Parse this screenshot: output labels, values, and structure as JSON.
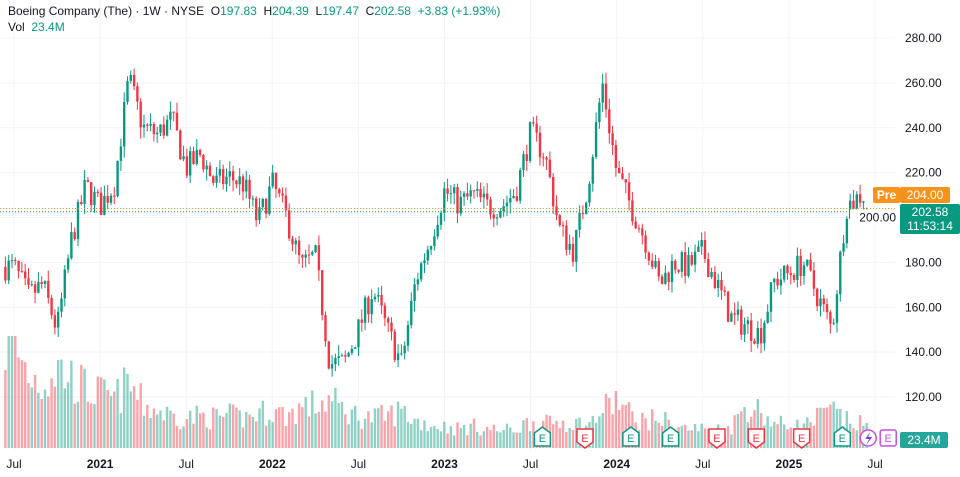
{
  "header": {
    "symbol": "Boeing Company (The) · 1W · NYSE",
    "open_label": "O",
    "open": "197.83",
    "high_label": "H",
    "high": "204.39",
    "low_label": "L",
    "low": "197.47",
    "close_label": "C",
    "close": "202.58",
    "change": "+3.83 (+1.93%)",
    "vol_label": "Vol",
    "vol": "23.4M"
  },
  "price_tags": {
    "pre_label": "Pre",
    "pre_price": "204.00",
    "last_price": "202.58",
    "countdown": "11:53:14",
    "volume": "23.4M"
  },
  "colors": {
    "up": "#089981",
    "down": "#f23645",
    "pre": "#f7931a",
    "event_upcoming": "#c84fe0"
  },
  "chart_data": {
    "type": "candlestick",
    "interval": "1W",
    "ylim": [
      110,
      290
    ],
    "yticks": [
      "280.00",
      "260.00",
      "240.00",
      "220.00",
      "200.00",
      "180.00",
      "160.00",
      "140.00",
      "120.00"
    ],
    "xticks": [
      {
        "label": "Jul",
        "date": "2020-07",
        "bold": false
      },
      {
        "label": "2021",
        "date": "2021-01",
        "bold": true
      },
      {
        "label": "Jul",
        "date": "2021-07",
        "bold": false
      },
      {
        "label": "2022",
        "date": "2022-01",
        "bold": true
      },
      {
        "label": "Jul",
        "date": "2022-07",
        "bold": false
      },
      {
        "label": "2023",
        "date": "2023-01",
        "bold": true
      },
      {
        "label": "Jul",
        "date": "2023-07",
        "bold": false
      },
      {
        "label": "2024",
        "date": "2024-01",
        "bold": true
      },
      {
        "label": "Jul",
        "date": "2024-07",
        "bold": false
      },
      {
        "label": "2025",
        "date": "2025-01",
        "bold": true
      },
      {
        "label": "Jul",
        "date": "2025-07",
        "bold": false
      }
    ],
    "grid": true,
    "monthly_close": [
      {
        "date": "2020-07",
        "close": 178
      },
      {
        "date": "2020-08",
        "close": 165
      },
      {
        "date": "2020-09",
        "close": 170
      },
      {
        "date": "2020-10",
        "close": 150
      },
      {
        "date": "2020-11",
        "close": 190
      },
      {
        "date": "2020-12",
        "close": 214
      },
      {
        "date": "2021-01",
        "close": 205
      },
      {
        "date": "2021-02",
        "close": 215
      },
      {
        "date": "2021-03",
        "close": 262
      },
      {
        "date": "2021-04",
        "close": 240
      },
      {
        "date": "2021-05",
        "close": 237
      },
      {
        "date": "2021-06",
        "close": 244
      },
      {
        "date": "2021-07",
        "close": 222
      },
      {
        "date": "2021-08",
        "close": 228
      },
      {
        "date": "2021-09",
        "close": 215
      },
      {
        "date": "2021-10",
        "close": 218
      },
      {
        "date": "2021-11",
        "close": 215
      },
      {
        "date": "2021-12",
        "close": 198
      },
      {
        "date": "2022-01",
        "close": 215
      },
      {
        "date": "2022-02",
        "close": 200
      },
      {
        "date": "2022-03",
        "close": 178
      },
      {
        "date": "2022-04",
        "close": 183
      },
      {
        "date": "2022-05",
        "close": 135
      },
      {
        "date": "2022-06",
        "close": 135
      },
      {
        "date": "2022-07",
        "close": 150
      },
      {
        "date": "2022-08",
        "close": 168
      },
      {
        "date": "2022-09",
        "close": 150
      },
      {
        "date": "2022-10",
        "close": 135
      },
      {
        "date": "2022-11",
        "close": 172
      },
      {
        "date": "2022-12",
        "close": 190
      },
      {
        "date": "2023-01",
        "close": 212
      },
      {
        "date": "2023-02",
        "close": 206
      },
      {
        "date": "2023-03",
        "close": 210
      },
      {
        "date": "2023-04",
        "close": 205
      },
      {
        "date": "2023-05",
        "close": 205
      },
      {
        "date": "2023-06",
        "close": 212
      },
      {
        "date": "2023-07",
        "close": 238
      },
      {
        "date": "2023-08",
        "close": 228
      },
      {
        "date": "2023-09",
        "close": 195
      },
      {
        "date": "2023-10",
        "close": 185
      },
      {
        "date": "2023-11",
        "close": 215
      },
      {
        "date": "2023-12",
        "close": 260
      },
      {
        "date": "2024-01",
        "close": 220
      },
      {
        "date": "2024-02",
        "close": 205
      },
      {
        "date": "2024-03",
        "close": 190
      },
      {
        "date": "2024-04",
        "close": 170
      },
      {
        "date": "2024-05",
        "close": 180
      },
      {
        "date": "2024-06",
        "close": 178
      },
      {
        "date": "2024-07",
        "close": 185
      },
      {
        "date": "2024-08",
        "close": 170
      },
      {
        "date": "2024-09",
        "close": 155
      },
      {
        "date": "2024-10",
        "close": 152
      },
      {
        "date": "2024-11",
        "close": 148
      },
      {
        "date": "2024-12",
        "close": 172
      },
      {
        "date": "2025-01",
        "close": 175
      },
      {
        "date": "2025-02",
        "close": 180
      },
      {
        "date": "2025-03",
        "close": 165
      },
      {
        "date": "2025-04",
        "close": 150
      },
      {
        "date": "2025-05",
        "close": 205
      },
      {
        "date": "2025-06",
        "close": 210
      }
    ],
    "monthly_volume_m": [
      95,
      70,
      60,
      75,
      65,
      55,
      50,
      45,
      60,
      40,
      35,
      30,
      28,
      30,
      28,
      30,
      28,
      32,
      35,
      30,
      38,
      40,
      45,
      35,
      30,
      28,
      30,
      35,
      25,
      22,
      20,
      18,
      20,
      18,
      16,
      18,
      25,
      22,
      25,
      24,
      20,
      35,
      45,
      30,
      25,
      28,
      20,
      18,
      18,
      17,
      20,
      40,
      35,
      22,
      22,
      20,
      28,
      35,
      25,
      22
    ],
    "last_candle": {
      "open": 197.83,
      "high": 204.39,
      "low": 197.47,
      "close": 202.58,
      "volume_m": 23.4
    },
    "pre_market": 204.0,
    "events": [
      {
        "label": "E",
        "date": "2023-07-26",
        "kind": "up"
      },
      {
        "label": "E",
        "date": "2023-10-25",
        "kind": "down"
      },
      {
        "label": "E",
        "date": "2024-01-31",
        "kind": "up"
      },
      {
        "label": "E",
        "date": "2024-04-24",
        "kind": "up"
      },
      {
        "label": "E",
        "date": "2024-07-31",
        "kind": "down"
      },
      {
        "label": "E",
        "date": "2024-10-23",
        "kind": "down"
      },
      {
        "label": "E",
        "date": "2025-01-28",
        "kind": "down"
      },
      {
        "label": "E",
        "date": "2025-04-23",
        "kind": "up"
      },
      {
        "label": "E",
        "date": "2025-07-29",
        "kind": "upcoming"
      }
    ]
  }
}
